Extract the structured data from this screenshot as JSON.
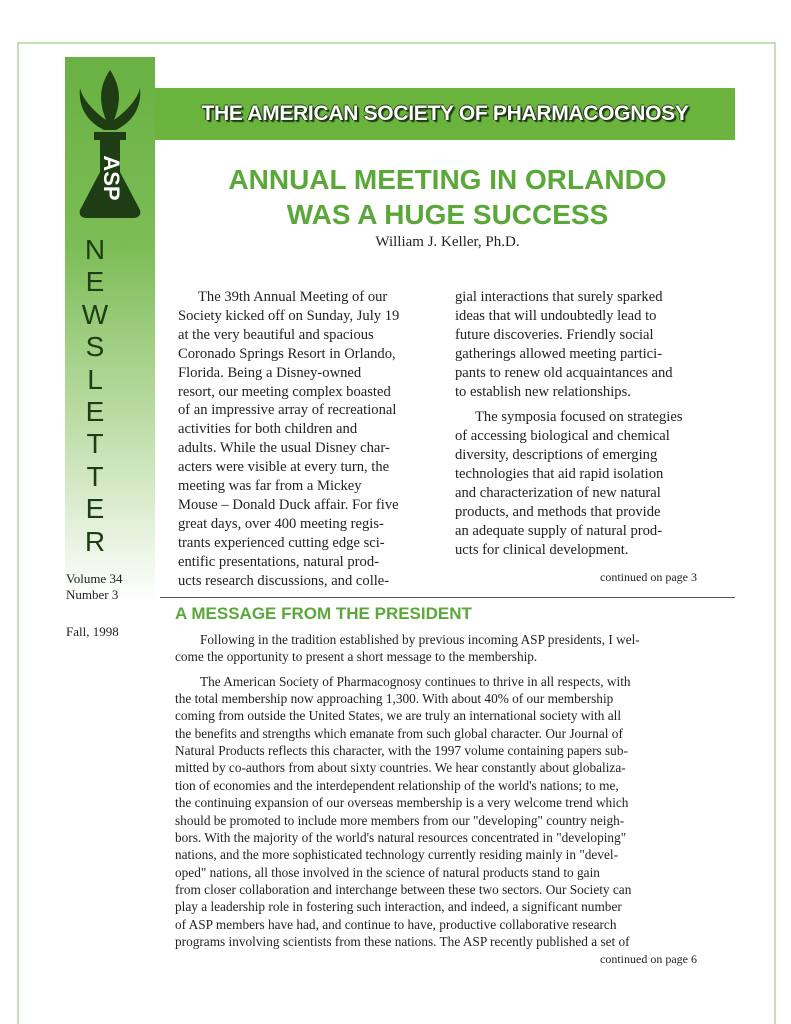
{
  "header": {
    "banner": "THE AMERICAN SOCIETY OF PHARMACOGNOSY",
    "logo_text": "ASP",
    "sidebar_letters": [
      "N",
      "E",
      "W",
      "S",
      "L",
      "E",
      "T",
      "T",
      "E",
      "R"
    ]
  },
  "issue": {
    "volume": "Volume 34",
    "number": "Number 3",
    "date": "Fall, 1998"
  },
  "article": {
    "title": [
      "ANNUAL MEETING IN ORLANDO",
      "WAS A HUGE SUCCESS"
    ],
    "author": "William J. Keller, Ph.D.",
    "columns": [
      [
        [
          "The 39th Annual Meeting of our",
          "Society kicked off on Sunday, July 19",
          "at the very beautiful and spacious",
          "Coronado Springs Resort in Orlando,",
          "Florida. Being a Disney-owned",
          "resort, our meeting complex boasted",
          "of an impressive array of recreational",
          "activities for both children and",
          "adults. While the usual Disney char-",
          "acters were visible at every turn, the",
          "meeting was far from a Mickey",
          "Mouse – Donald Duck affair. For five",
          "great days, over 400 meeting regis-",
          "trants experienced cutting edge sci-",
          "entific presentations, natural prod-",
          "ucts research discussions, and colle-"
        ]
      ],
      [
        [
          "gial interactions that surely sparked",
          "ideas that will undoubtedly lead to",
          "future discoveries. Friendly social",
          "gatherings allowed meeting partici-",
          "pants to renew old acquaintances and",
          "to establish new relationships."
        ],
        [
          "The symposia focused on strategies",
          "of accessing biological and chemical",
          "diversity, descriptions of emerging",
          "technologies that aid rapid isolation",
          "and characterization of new natural",
          "products, and methods that provide",
          "an adequate supply of natural prod-",
          "ucts for clinical development."
        ]
      ]
    ],
    "continued": "continued  on page 3"
  },
  "message": {
    "heading": "A MESSAGE FROM THE PRESIDENT",
    "paragraphs": [
      [
        "Following in the tradition established by previous incoming ASP presidents, I wel-",
        "come the opportunity to present a short message to the membership."
      ],
      [
        "The American Society of Pharmacognosy continues to thrive in all respects, with",
        "the total membership now approaching 1,300. With about 40% of our membership",
        "coming from outside the United States, we are truly an international society with all",
        "the benefits and strengths which emanate from such global character. Our Journal of",
        "Natural Products reflects this character, with the 1997 volume containing papers sub-",
        "mitted by co-authors from about sixty countries. We hear constantly about globaliza-",
        "tion of economies and the interdependent relationship of the world's nations; to me,",
        "the continuing expansion of our overseas membership is a very welcome trend which",
        "should be promoted to include more members from our \"developing\" country neigh-",
        "bors. With the majority of the world's natural resources concentrated in \"developing\"",
        "nations, and the more sophisticated technology currently residing mainly in \"devel-",
        "oped\" nations, all those involved in the science of natural products stand to gain",
        "from closer collaboration and interchange between these two sectors. Our Society can",
        "play a leadership role in fostering such interaction, and indeed, a significant number",
        "of ASP members have had, and continue to have, productive collaborative research",
        "programs involving scientists from these nations. The ASP recently published a set of"
      ]
    ],
    "continued": "continued  on page 6"
  }
}
